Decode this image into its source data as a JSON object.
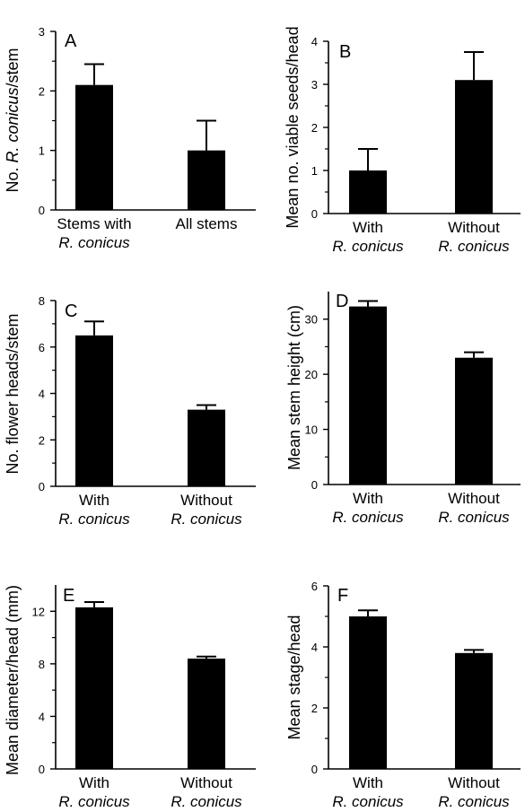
{
  "figure": {
    "panels": [
      "A",
      "B",
      "C",
      "D",
      "E",
      "F"
    ]
  },
  "chart_data": [
    {
      "panel": "A",
      "type": "bar",
      "ylabel": "No. R. conicus/stem",
      "ylabel_italic_part": "R. conicus",
      "ylim": [
        0,
        3
      ],
      "yticks": [
        0,
        1,
        2,
        3
      ],
      "categories": [
        {
          "line1": "Stems with",
          "line2": "R. conicus"
        },
        {
          "line1": "All stems",
          "line2": ""
        }
      ],
      "values": [
        2.1,
        1.0
      ],
      "errors": [
        0.35,
        0.5
      ]
    },
    {
      "panel": "B",
      "type": "bar",
      "ylabel": "Mean no. viable seeds/head",
      "ylim": [
        0,
        4
      ],
      "yticks": [
        0,
        1,
        2,
        3,
        4
      ],
      "categories": [
        {
          "line1": "With",
          "line2": "R. conicus"
        },
        {
          "line1": "Without",
          "line2": "R. conicus"
        }
      ],
      "values": [
        1.0,
        3.1
      ],
      "errors": [
        0.5,
        0.65
      ]
    },
    {
      "panel": "C",
      "type": "bar",
      "ylabel": "No. flower heads/stem",
      "ylim": [
        0,
        8
      ],
      "yticks": [
        0,
        2,
        4,
        6,
        8
      ],
      "categories": [
        {
          "line1": "With",
          "line2": "R. conicus"
        },
        {
          "line1": "Without",
          "line2": "R. conicus"
        }
      ],
      "values": [
        6.5,
        3.3
      ],
      "errors": [
        0.6,
        0.2
      ]
    },
    {
      "panel": "D",
      "type": "bar",
      "ylabel": "Mean stem height (cm)",
      "ylim": [
        0,
        35
      ],
      "yticks": [
        0,
        10,
        20,
        30
      ],
      "categories": [
        {
          "line1": "With",
          "line2": "R. conicus"
        },
        {
          "line1": "Without",
          "line2": "R. conicus"
        }
      ],
      "values": [
        32.3,
        23.0
      ],
      "errors": [
        1.0,
        1.0
      ]
    },
    {
      "panel": "E",
      "type": "bar",
      "ylabel": "Mean diameter/head (mm)",
      "ylim": [
        0,
        14
      ],
      "yticks": [
        0,
        4,
        8,
        12
      ],
      "categories": [
        {
          "line1": "With",
          "line2": "R. conicus"
        },
        {
          "line1": "Without",
          "line2": "R. conicus"
        }
      ],
      "values": [
        12.3,
        8.4
      ],
      "errors": [
        0.4,
        0.15
      ]
    },
    {
      "panel": "F",
      "type": "bar",
      "ylabel": "Mean stage/head",
      "ylim": [
        0,
        6
      ],
      "yticks": [
        0,
        2,
        4,
        6
      ],
      "categories": [
        {
          "line1": "With",
          "line2": "R. conicus"
        },
        {
          "line1": "Without",
          "line2": "R. conicus"
        }
      ],
      "values": [
        5.0,
        3.8
      ],
      "errors": [
        0.2,
        0.1
      ]
    }
  ]
}
